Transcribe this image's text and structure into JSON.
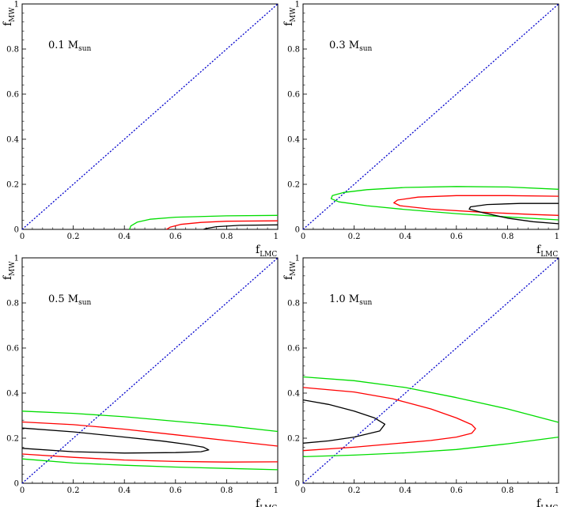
{
  "chart_data": [
    {
      "type": "contour",
      "label": "0.1",
      "label_sub": "sun",
      "label_unit": "M",
      "xlabel": "f",
      "xlabel_sub": "LMC",
      "ylabel": "f",
      "ylabel_sub": "MW",
      "xlim": [
        0,
        1
      ],
      "ylim": [
        0,
        1
      ],
      "xticks": [
        "0",
        "0.2",
        "0.4",
        "0.6",
        "0.8",
        "1"
      ],
      "yticks": [
        "0",
        "0.2",
        "0.4",
        "0.6",
        "0.8",
        "1"
      ],
      "diagonal": {
        "color": "#0000cc",
        "style": "dotted",
        "from": [
          0,
          0
        ],
        "to": [
          1,
          1
        ]
      },
      "contours": [
        {
          "color": "#00dd00",
          "points": [
            [
              1.0,
              0.062
            ],
            [
              0.8,
              0.06
            ],
            [
              0.6,
              0.054
            ],
            [
              0.5,
              0.045
            ],
            [
              0.45,
              0.032
            ],
            [
              0.425,
              0.015
            ],
            [
              0.42,
              0.0
            ]
          ]
        },
        {
          "color": "#ff0000",
          "points": [
            [
              1.0,
              0.038
            ],
            [
              0.8,
              0.036
            ],
            [
              0.7,
              0.031
            ],
            [
              0.62,
              0.022
            ],
            [
              0.58,
              0.01
            ],
            [
              0.565,
              0.0
            ]
          ]
        },
        {
          "color": "#000000",
          "points": [
            [
              1.0,
              0.02
            ],
            [
              0.85,
              0.018
            ],
            [
              0.76,
              0.012
            ],
            [
              0.72,
              0.004
            ],
            [
              0.71,
              0.0
            ]
          ]
        }
      ]
    },
    {
      "type": "contour",
      "label": "0.3",
      "label_sub": "sun",
      "label_unit": "M",
      "xlabel": "f",
      "xlabel_sub": "LMC",
      "ylabel": "f",
      "ylabel_sub": "MW",
      "xlim": [
        0,
        1
      ],
      "ylim": [
        0,
        1
      ],
      "xticks": [
        "0",
        "0.2",
        "0.4",
        "0.6",
        "0.8",
        "1"
      ],
      "yticks": [
        "0",
        "0.2",
        "0.4",
        "0.6",
        "0.8",
        "1"
      ],
      "diagonal": {
        "color": "#0000cc",
        "style": "dotted",
        "from": [
          0,
          0
        ],
        "to": [
          1,
          1
        ]
      },
      "contours": [
        {
          "color": "#00dd00",
          "points": [
            [
              1.0,
              0.178
            ],
            [
              0.8,
              0.188
            ],
            [
              0.6,
              0.19
            ],
            [
              0.4,
              0.186
            ],
            [
              0.25,
              0.176
            ],
            [
              0.16,
              0.164
            ],
            [
              0.115,
              0.15
            ],
            [
              0.11,
              0.136
            ],
            [
              0.14,
              0.122
            ],
            [
              0.25,
              0.105
            ],
            [
              0.4,
              0.088
            ],
            [
              0.6,
              0.07
            ],
            [
              0.8,
              0.055
            ],
            [
              1.0,
              0.042
            ]
          ]
        },
        {
          "color": "#ff0000",
          "points": [
            [
              1.0,
              0.147
            ],
            [
              0.8,
              0.15
            ],
            [
              0.6,
              0.15
            ],
            [
              0.45,
              0.143
            ],
            [
              0.37,
              0.13
            ],
            [
              0.355,
              0.118
            ],
            [
              0.38,
              0.105
            ],
            [
              0.5,
              0.09
            ],
            [
              0.7,
              0.076
            ],
            [
              0.9,
              0.066
            ],
            [
              1.0,
              0.062
            ]
          ]
        },
        {
          "color": "#000000",
          "points": [
            [
              1.0,
              0.115
            ],
            [
              0.85,
              0.115
            ],
            [
              0.72,
              0.11
            ],
            [
              0.655,
              0.1
            ],
            [
              0.65,
              0.09
            ],
            [
              0.7,
              0.075
            ],
            [
              0.8,
              0.05
            ],
            [
              0.9,
              0.034
            ],
            [
              1.0,
              0.025
            ]
          ]
        }
      ]
    },
    {
      "type": "contour",
      "label": "0.5",
      "label_sub": "sun",
      "label_unit": "M",
      "xlabel": "f",
      "xlabel_sub": "LMC",
      "ylabel": "f",
      "ylabel_sub": "MW",
      "xlim": [
        0,
        1
      ],
      "ylim": [
        0,
        1
      ],
      "xticks": [
        "0",
        "0.2",
        "0.4",
        "0.6",
        "0.8",
        "1"
      ],
      "yticks": [
        "0",
        "0.2",
        "0.4",
        "0.6",
        "0.8",
        "1"
      ],
      "diagonal": {
        "color": "#0000cc",
        "style": "dotted",
        "from": [
          0,
          0
        ],
        "to": [
          1,
          1
        ]
      },
      "contours": [
        {
          "color": "#00dd00",
          "points": [
            [
              0.0,
              0.32
            ],
            [
              0.2,
              0.31
            ],
            [
              0.4,
              0.295
            ],
            [
              0.6,
              0.275
            ],
            [
              0.8,
              0.255
            ],
            [
              1.0,
              0.23
            ]
          ]
        },
        {
          "color": "#00dd00",
          "points": [
            [
              0.0,
              0.108
            ],
            [
              0.2,
              0.09
            ],
            [
              0.4,
              0.08
            ],
            [
              0.6,
              0.072
            ],
            [
              0.8,
              0.066
            ],
            [
              1.0,
              0.06
            ]
          ]
        },
        {
          "color": "#ff0000",
          "points": [
            [
              0.0,
              0.272
            ],
            [
              0.2,
              0.26
            ],
            [
              0.4,
              0.24
            ],
            [
              0.6,
              0.215
            ],
            [
              0.8,
              0.19
            ],
            [
              1.0,
              0.165
            ]
          ]
        },
        {
          "color": "#ff0000",
          "points": [
            [
              0.0,
              0.13
            ],
            [
              0.2,
              0.115
            ],
            [
              0.4,
              0.103
            ],
            [
              0.6,
              0.097
            ],
            [
              0.8,
              0.094
            ],
            [
              1.0,
              0.095
            ]
          ]
        },
        {
          "color": "#000000",
          "points": [
            [
              0.0,
              0.245
            ],
            [
              0.2,
              0.228
            ],
            [
              0.4,
              0.205
            ],
            [
              0.55,
              0.187
            ],
            [
              0.65,
              0.172
            ],
            [
              0.71,
              0.16
            ],
            [
              0.73,
              0.148
            ],
            [
              0.7,
              0.14
            ],
            [
              0.6,
              0.136
            ],
            [
              0.4,
              0.134
            ],
            [
              0.2,
              0.14
            ],
            [
              0.0,
              0.155
            ]
          ]
        }
      ]
    },
    {
      "type": "contour",
      "label": "1.0",
      "label_sub": "sun",
      "label_unit": "M",
      "xlabel": "f",
      "xlabel_sub": "LMC",
      "ylabel": "f",
      "ylabel_sub": "MW",
      "xlim": [
        0,
        1
      ],
      "ylim": [
        0,
        1
      ],
      "xticks": [
        "0",
        "0.2",
        "0.4",
        "0.6",
        "0.8",
        "1"
      ],
      "yticks": [
        "0",
        "0.2",
        "0.4",
        "0.6",
        "0.8",
        "1"
      ],
      "diagonal": {
        "color": "#0000cc",
        "style": "dotted",
        "from": [
          0,
          0
        ],
        "to": [
          1,
          1
        ]
      },
      "contours": [
        {
          "color": "#00dd00",
          "points": [
            [
              0.0,
              0.472
            ],
            [
              0.2,
              0.455
            ],
            [
              0.4,
              0.425
            ],
            [
              0.6,
              0.38
            ],
            [
              0.8,
              0.33
            ],
            [
              1.0,
              0.27
            ]
          ]
        },
        {
          "color": "#00dd00",
          "points": [
            [
              0.0,
              0.118
            ],
            [
              0.2,
              0.125
            ],
            [
              0.4,
              0.135
            ],
            [
              0.6,
              0.15
            ],
            [
              0.8,
              0.175
            ],
            [
              1.0,
              0.205
            ]
          ]
        },
        {
          "color": "#ff0000",
          "points": [
            [
              0.0,
              0.425
            ],
            [
              0.2,
              0.405
            ],
            [
              0.35,
              0.375
            ],
            [
              0.5,
              0.33
            ],
            [
              0.6,
              0.29
            ],
            [
              0.66,
              0.26
            ],
            [
              0.675,
              0.242
            ],
            [
              0.66,
              0.222
            ],
            [
              0.6,
              0.205
            ],
            [
              0.5,
              0.19
            ],
            [
              0.35,
              0.175
            ],
            [
              0.2,
              0.16
            ],
            [
              0.0,
              0.145
            ]
          ]
        },
        {
          "color": "#000000",
          "points": [
            [
              0.0,
              0.37
            ],
            [
              0.1,
              0.35
            ],
            [
              0.2,
              0.32
            ],
            [
              0.28,
              0.29
            ],
            [
              0.32,
              0.262
            ],
            [
              0.3,
              0.232
            ],
            [
              0.2,
              0.205
            ],
            [
              0.1,
              0.188
            ],
            [
              0.0,
              0.178
            ]
          ]
        }
      ]
    }
  ]
}
